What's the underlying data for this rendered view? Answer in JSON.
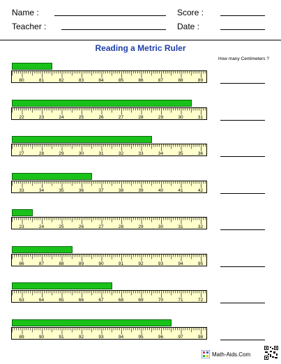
{
  "header": {
    "name_label": "Name :",
    "score_label": "Score :",
    "teacher_label": "Teacher :",
    "date_label": "Date :"
  },
  "title": "Reading a Metric Ruler",
  "column_header": "How many Centimeters ?",
  "problems": [
    {
      "start": 80,
      "end": 89,
      "bar_cm": 2.0
    },
    {
      "start": 22,
      "end": 31,
      "bar_cm": 9.0
    },
    {
      "start": 27,
      "end": 36,
      "bar_cm": 7.0
    },
    {
      "start": 33,
      "end": 42,
      "bar_cm": 4.0
    },
    {
      "start": 23,
      "end": 32,
      "bar_cm": 1.0
    },
    {
      "start": 86,
      "end": 95,
      "bar_cm": 3.0
    },
    {
      "start": 63,
      "end": 72,
      "bar_cm": 5.0
    },
    {
      "start": 89,
      "end": 98,
      "bar_cm": 8.0
    }
  ],
  "footer": {
    "brand": "Math-Aids.Com"
  },
  "colors": {
    "bar_fill": "#19c219",
    "ruler_fill": "#ffffcc",
    "title": "#1f3fa8"
  }
}
